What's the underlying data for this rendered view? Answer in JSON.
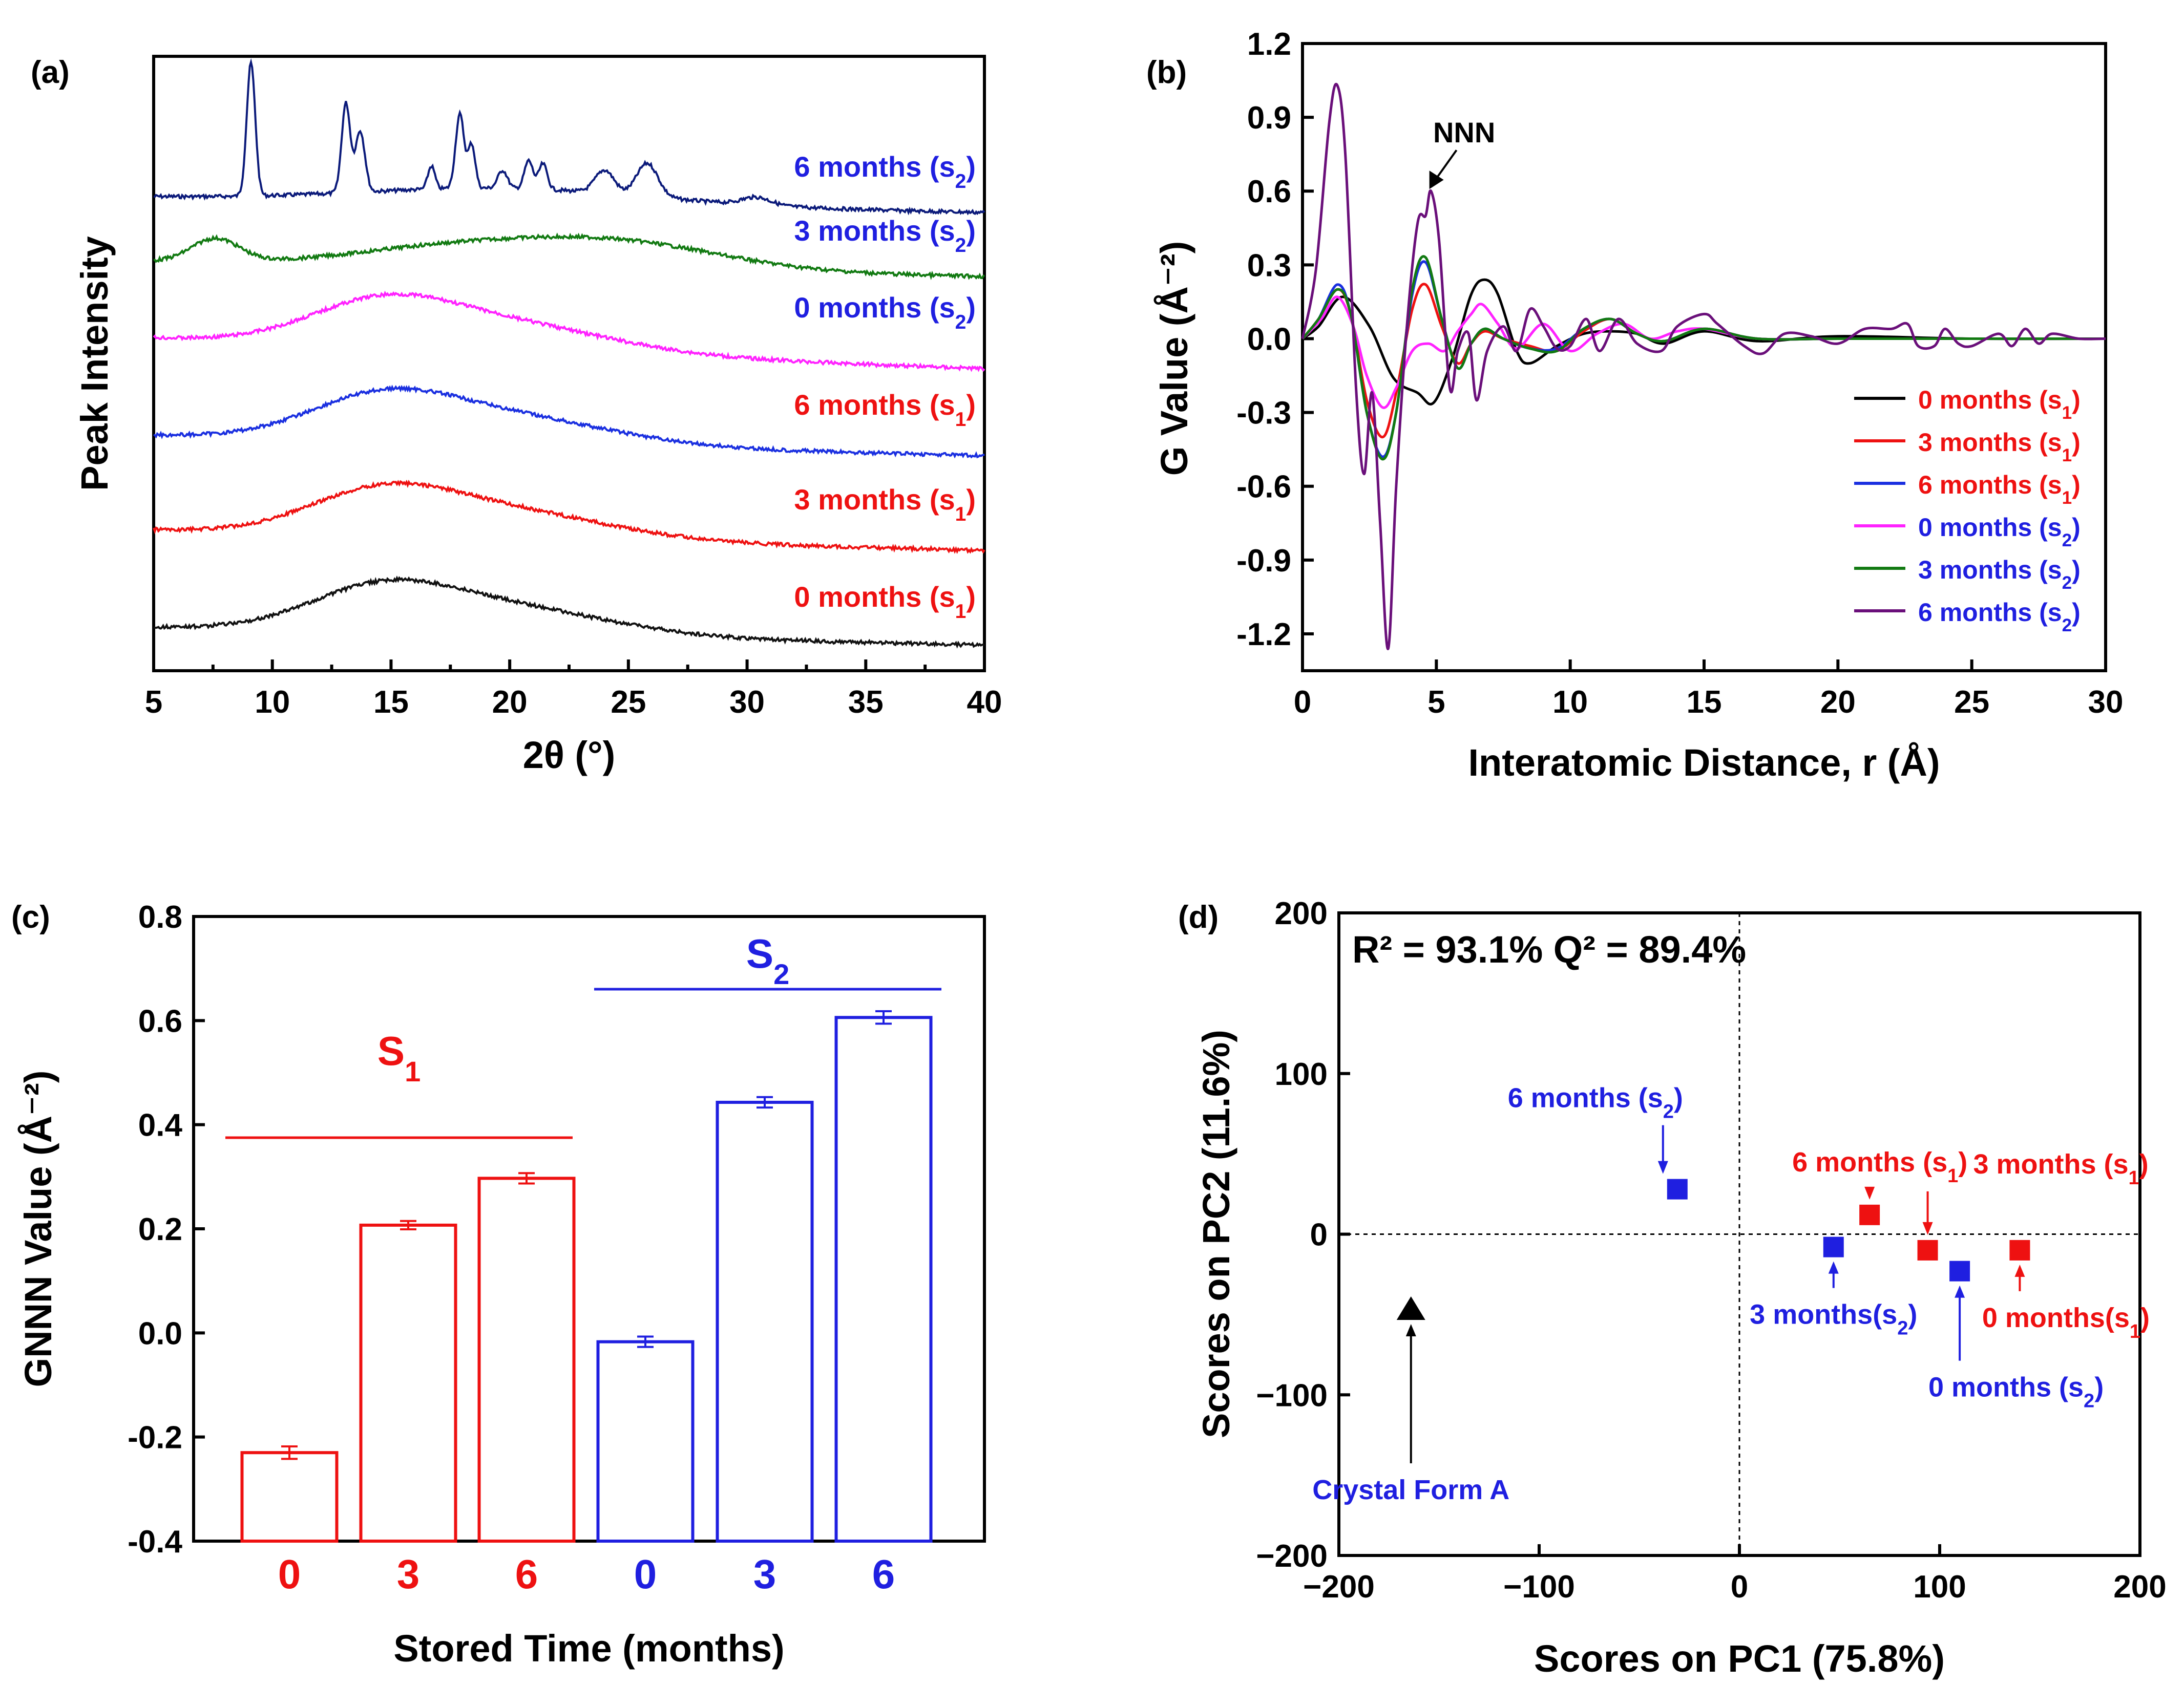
{
  "chart_data": [
    {
      "panel": "(a)",
      "type": "line",
      "xlabel": "2θ (°)",
      "ylabel": "Peak Intensity",
      "xlim": [
        5,
        40
      ],
      "xticks": [
        5,
        10,
        15,
        20,
        25,
        30,
        35,
        40
      ],
      "series": [
        {
          "name": "6 months",
          "sub": "2",
          "label_color": "#1f1fe0",
          "color": "#0b1a7a",
          "kind": "crystalline",
          "peaks_2theta": [
            9.1,
            13.1,
            13.7,
            16.7,
            17.9,
            18.4,
            19.7,
            20.8,
            21.4,
            24.0,
            25.8,
            30.4
          ]
        },
        {
          "name": "3 months",
          "sub": "2",
          "label_color": "#1f1fe0",
          "color": "#127a12",
          "kind": "amorphous-halo",
          "halo_centers": [
            7.7,
            24.3
          ]
        },
        {
          "name": "0 months",
          "sub": "2",
          "label_color": "#1f1fe0",
          "color": "#ff22ff",
          "kind": "amorphous-halo",
          "halo_centers": [
            14.0,
            19.0
          ]
        },
        {
          "name": "6 months",
          "sub": "1",
          "label_color": "#ee1111",
          "color": "#1a2fe0",
          "kind": "amorphous-halo",
          "halo_centers": [
            13.5,
            18.0
          ]
        },
        {
          "name": "3 months",
          "sub": "1",
          "label_color": "#ee1111",
          "color": "#ee1111",
          "kind": "amorphous-halo",
          "halo_centers": [
            13.5,
            18.0
          ]
        },
        {
          "name": "0 months",
          "sub": "1",
          "label_color": "#ee1111",
          "color": "#111111",
          "kind": "amorphous-halo",
          "halo_centers": [
            13.5,
            18.0
          ]
        }
      ]
    },
    {
      "panel": "(b)",
      "type": "line",
      "xlabel": "Interatomic Distance, r (Å)",
      "ylabel": "G Value (Å⁻²)",
      "xlim": [
        0,
        30
      ],
      "ylim": [
        -1.35,
        1.2
      ],
      "xticks": [
        0,
        5,
        10,
        15,
        20,
        25,
        30
      ],
      "yticks": [
        -1.2,
        -0.9,
        -0.6,
        -0.3,
        0.0,
        0.3,
        0.6,
        0.9,
        1.2
      ],
      "annotation": "NNN",
      "annotation_at": [
        4.7,
        0.6
      ],
      "series": [
        {
          "name": "0 months (s1)",
          "color": "#000000",
          "points": [
            [
              0,
              0
            ],
            [
              0.6,
              0.05
            ],
            [
              1.5,
              0.17
            ],
            [
              2.5,
              0.05
            ],
            [
              3.4,
              -0.16
            ],
            [
              4.3,
              -0.22
            ],
            [
              4.9,
              -0.26
            ],
            [
              5.6,
              -0.08
            ],
            [
              6.3,
              0.18
            ],
            [
              6.8,
              0.24
            ],
            [
              7.3,
              0.18
            ],
            [
              8.0,
              -0.05
            ],
            [
              8.5,
              -0.1
            ],
            [
              9.5,
              -0.03
            ],
            [
              10.5,
              0.02
            ],
            [
              11.5,
              0.03
            ],
            [
              12.5,
              0.02
            ],
            [
              13.5,
              -0.02
            ],
            [
              15,
              0.03
            ],
            [
              17,
              -0.01
            ],
            [
              20,
              0.01
            ],
            [
              25,
              0
            ],
            [
              30,
              0
            ]
          ]
        },
        {
          "name": "3 months (s1)",
          "color": "#ee1111",
          "points": [
            [
              0,
              0
            ],
            [
              0.6,
              0.08
            ],
            [
              1.3,
              0.2
            ],
            [
              1.8,
              0.1
            ],
            [
              2.4,
              -0.25
            ],
            [
              3.0,
              -0.4
            ],
            [
              3.5,
              -0.22
            ],
            [
              4.1,
              0.12
            ],
            [
              4.6,
              0.22
            ],
            [
              5.2,
              0.05
            ],
            [
              5.8,
              -0.1
            ],
            [
              6.3,
              -0.02
            ],
            [
              6.8,
              0.03
            ],
            [
              7.5,
              0.0
            ],
            [
              8.5,
              -0.03
            ],
            [
              9.5,
              -0.05
            ],
            [
              10.5,
              0.03
            ],
            [
              11.5,
              0.08
            ],
            [
              12.5,
              0.02
            ],
            [
              13.5,
              -0.01
            ],
            [
              15,
              0.04
            ],
            [
              17,
              0.0
            ],
            [
              20,
              0.0
            ],
            [
              25,
              0
            ],
            [
              30,
              0
            ]
          ]
        },
        {
          "name": "6 months (s1)",
          "color": "#1a2fe0",
          "points": [
            [
              0,
              0
            ],
            [
              0.6,
              0.08
            ],
            [
              1.3,
              0.22
            ],
            [
              1.8,
              0.1
            ],
            [
              2.4,
              -0.3
            ],
            [
              3.0,
              -0.48
            ],
            [
              3.5,
              -0.3
            ],
            [
              4.1,
              0.18
            ],
            [
              4.6,
              0.31
            ],
            [
              5.2,
              0.08
            ],
            [
              5.8,
              -0.12
            ],
            [
              6.3,
              -0.02
            ],
            [
              6.8,
              0.04
            ],
            [
              7.5,
              0.0
            ],
            [
              8.5,
              -0.04
            ],
            [
              9.5,
              -0.04
            ],
            [
              10.5,
              0.04
            ],
            [
              11.5,
              0.08
            ],
            [
              12.5,
              0.02
            ],
            [
              13.5,
              -0.01
            ],
            [
              15,
              0.04
            ],
            [
              17,
              0.0
            ],
            [
              20,
              0.0
            ],
            [
              25,
              0
            ],
            [
              30,
              0
            ]
          ]
        },
        {
          "name": "0 months (s2)",
          "color": "#ff22ff",
          "points": [
            [
              0,
              0
            ],
            [
              0.7,
              0.08
            ],
            [
              1.3,
              0.17
            ],
            [
              1.9,
              0.05
            ],
            [
              2.4,
              -0.15
            ],
            [
              3.0,
              -0.28
            ],
            [
              3.5,
              -0.2
            ],
            [
              4.1,
              -0.05
            ],
            [
              4.7,
              -0.02
            ],
            [
              5.3,
              -0.05
            ],
            [
              5.8,
              0.03
            ],
            [
              6.3,
              0.1
            ],
            [
              6.7,
              0.14
            ],
            [
              7.3,
              0.06
            ],
            [
              8.0,
              -0.04
            ],
            [
              9.0,
              0.06
            ],
            [
              10.0,
              -0.05
            ],
            [
              11.0,
              0.02
            ],
            [
              12,
              0.06
            ],
            [
              13,
              0.0
            ],
            [
              14,
              0.03
            ],
            [
              15,
              0.04
            ],
            [
              17,
              0.0
            ],
            [
              20,
              0.0
            ],
            [
              25,
              0
            ],
            [
              30,
              0
            ]
          ]
        },
        {
          "name": "3 months (s2)",
          "color": "#127a12",
          "points": [
            [
              0,
              0
            ],
            [
              0.6,
              0.08
            ],
            [
              1.3,
              0.2
            ],
            [
              1.8,
              0.1
            ],
            [
              2.4,
              -0.3
            ],
            [
              3.0,
              -0.49
            ],
            [
              3.5,
              -0.3
            ],
            [
              4.1,
              0.2
            ],
            [
              4.6,
              0.33
            ],
            [
              5.2,
              0.08
            ],
            [
              5.8,
              -0.12
            ],
            [
              6.3,
              -0.02
            ],
            [
              6.8,
              0.04
            ],
            [
              7.5,
              0.0
            ],
            [
              8.5,
              -0.04
            ],
            [
              9.5,
              -0.05
            ],
            [
              10.5,
              0.04
            ],
            [
              11.5,
              0.08
            ],
            [
              12.5,
              0.02
            ],
            [
              13.5,
              -0.01
            ],
            [
              15,
              0.04
            ],
            [
              17,
              0.0
            ],
            [
              20,
              0.0
            ],
            [
              25,
              0
            ],
            [
              30,
              0
            ]
          ]
        },
        {
          "name": "6 months (s2)",
          "color": "#6a0f7a",
          "points": [
            [
              0,
              0
            ],
            [
              0.5,
              0.28
            ],
            [
              1.0,
              0.88
            ],
            [
              1.3,
              1.03
            ],
            [
              1.6,
              0.75
            ],
            [
              2.0,
              -0.2
            ],
            [
              2.3,
              -0.55
            ],
            [
              2.6,
              -0.22
            ],
            [
              2.9,
              -0.75
            ],
            [
              3.2,
              -1.26
            ],
            [
              3.5,
              -0.6
            ],
            [
              3.9,
              0.05
            ],
            [
              4.3,
              0.47
            ],
            [
              4.6,
              0.5
            ],
            [
              4.8,
              0.6
            ],
            [
              5.1,
              0.4
            ],
            [
              5.5,
              -0.2
            ],
            [
              5.8,
              -0.05
            ],
            [
              6.2,
              0.02
            ],
            [
              6.5,
              -0.25
            ],
            [
              6.9,
              -0.05
            ],
            [
              7.5,
              0.05
            ],
            [
              8.0,
              -0.05
            ],
            [
              8.5,
              0.12
            ],
            [
              9.0,
              0.05
            ],
            [
              9.5,
              -0.04
            ],
            [
              10.0,
              -0.03
            ],
            [
              10.6,
              0.08
            ],
            [
              11.1,
              -0.05
            ],
            [
              11.8,
              0.08
            ],
            [
              12.5,
              -0.02
            ],
            [
              13.4,
              -0.05
            ],
            [
              14.0,
              0.05
            ],
            [
              15.0,
              0.1
            ],
            [
              15.5,
              0.06
            ],
            [
              16.5,
              -0.03
            ],
            [
              17.2,
              -0.06
            ],
            [
              18,
              0.02
            ],
            [
              19,
              0.01
            ],
            [
              20,
              -0.02
            ],
            [
              21,
              0.04
            ],
            [
              22,
              0.04
            ],
            [
              22.6,
              0.06
            ],
            [
              23,
              -0.03
            ],
            [
              23.6,
              -0.03
            ],
            [
              24,
              0.04
            ],
            [
              24.5,
              -0.02
            ],
            [
              25,
              -0.03
            ],
            [
              26,
              0.02
            ],
            [
              26.5,
              -0.03
            ],
            [
              27,
              0.04
            ],
            [
              27.5,
              -0.02
            ],
            [
              28,
              0.02
            ],
            [
              29,
              0.0
            ],
            [
              30,
              0.0
            ]
          ]
        }
      ]
    },
    {
      "panel": "(c)",
      "type": "bar",
      "xlabel": "Stored Time (months)",
      "ylabel": "GNNN Value (Å⁻²)",
      "ylim": [
        -0.4,
        0.8
      ],
      "yticks": [
        -0.4,
        -0.2,
        0.0,
        0.2,
        0.4,
        0.6,
        0.8
      ],
      "categories": [
        "0",
        "3",
        "6",
        "0",
        "3",
        "6"
      ],
      "groups": [
        {
          "name": "S",
          "sub": "1",
          "color": "#ee1111",
          "values": [
            -0.23,
            0.207,
            0.297
          ],
          "errors": [
            0.012,
            0.008,
            0.01
          ]
        },
        {
          "name": "S",
          "sub": "2",
          "color": "#1f1fe0",
          "values": [
            -0.017,
            0.443,
            0.606
          ],
          "errors": [
            0.01,
            0.01,
            0.012
          ]
        }
      ]
    },
    {
      "panel": "(d)",
      "type": "scatter",
      "xlabel": "Scores on PC1 (75.8%)",
      "ylabel": "Scores on PC2 (11.6%)",
      "xlim": [
        -200,
        200
      ],
      "ylim": [
        -200,
        200
      ],
      "xticks": [
        -200,
        -100,
        0,
        100,
        200
      ],
      "yticks": [
        -200,
        -100,
        0,
        100,
        200
      ],
      "stats_text": "R² = 93.1% Q² = 89.4%",
      "points": [
        {
          "label": "6 months (s",
          "sub": "2",
          "label_tail": ")",
          "x": -31,
          "y": 28,
          "color": "#1f1fe0",
          "marker": "square",
          "label_color": "#1f1fe0"
        },
        {
          "label": "6 months (s",
          "sub": "1",
          "label_tail": ")",
          "x": 65,
          "y": 12,
          "color": "#ee1111",
          "marker": "square",
          "label_color": "#ee1111"
        },
        {
          "label": "3 months (s",
          "sub": "1",
          "label_tail": ")",
          "x": 94,
          "y": -10,
          "color": "#ee1111",
          "marker": "square",
          "label_color": "#ee1111"
        },
        {
          "label": "3 months(s",
          "sub": "2",
          "label_tail": ")",
          "x": 47,
          "y": -8,
          "color": "#1f1fe0",
          "marker": "square",
          "label_color": "#1f1fe0"
        },
        {
          "label": "0 months (s",
          "sub": "2",
          "label_tail": ")",
          "x": 110,
          "y": -23,
          "color": "#1f1fe0",
          "marker": "square",
          "label_color": "#1f1fe0"
        },
        {
          "label": "0 months(s",
          "sub": "1",
          "label_tail": ")",
          "x": 140,
          "y": -10,
          "color": "#ee1111",
          "marker": "square",
          "label_color": "#ee1111"
        },
        {
          "label": "Crystal Form A",
          "sub": "",
          "label_tail": "",
          "x": -164,
          "y": -47,
          "color": "#000000",
          "marker": "triangle",
          "label_color": "#1f1fe0"
        }
      ]
    }
  ]
}
